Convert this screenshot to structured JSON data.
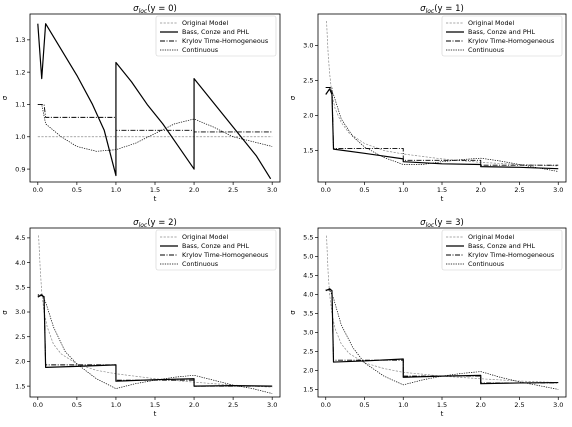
{
  "chart_data": [
    {
      "type": "line",
      "title_base": "σ",
      "title_sub": "loc",
      "title_arg": "(y = 0)",
      "xlabel": "t",
      "ylabel": "σ",
      "xlim": [
        -0.1,
        3.1
      ],
      "ylim": [
        0.86,
        1.38
      ],
      "xticks": [
        "0.0",
        "0.5",
        "1.0",
        "1.5",
        "2.0",
        "2.5",
        "3.0"
      ],
      "xtick_values": [
        0,
        0.5,
        1,
        1.5,
        2,
        2.5,
        3
      ],
      "yticks": [
        "0.9",
        "1.0",
        "1.1",
        "1.2",
        "1.3"
      ],
      "ytick_values": [
        0.9,
        1.0,
        1.1,
        1.2,
        1.3
      ],
      "legend": "top-right",
      "series": [
        {
          "name": "Original Model",
          "style": "orig",
          "x": [
            0,
            3
          ],
          "y": [
            1.0,
            1.0
          ]
        },
        {
          "name": "Bass, Conze and PHL",
          "style": "bass",
          "x": [
            0,
            0.05,
            0.1,
            0.3,
            0.5,
            0.7,
            0.85,
            1.0,
            1.0,
            1.2,
            1.4,
            1.6,
            1.8,
            2.0,
            2.0,
            2.2,
            2.4,
            2.6,
            2.8,
            2.98
          ],
          "y": [
            1.35,
            1.18,
            1.35,
            1.27,
            1.19,
            1.1,
            1.02,
            0.88,
            1.23,
            1.17,
            1.1,
            1.04,
            0.97,
            0.9,
            1.18,
            1.12,
            1.06,
            1.0,
            0.94,
            0.87
          ]
        },
        {
          "name": "Krylov Time-Homogeneous",
          "style": "krylov",
          "x": [
            0,
            0.08,
            0.1,
            1.0,
            1.0,
            2.0,
            2.0,
            3.0
          ],
          "y": [
            1.1,
            1.1,
            1.06,
            1.06,
            1.02,
            1.02,
            1.015,
            1.015
          ]
        },
        {
          "name": "Continuous",
          "style": "cont",
          "x": [
            0,
            0.05,
            0.1,
            0.3,
            0.5,
            0.75,
            1.0,
            1.25,
            1.5,
            1.75,
            2.0,
            2.25,
            2.5,
            2.75,
            3.0
          ],
          "y": [
            1.1,
            1.1,
            1.04,
            1.0,
            0.97,
            0.955,
            0.96,
            0.98,
            1.01,
            1.04,
            1.055,
            1.03,
            1.0,
            0.985,
            0.97
          ]
        }
      ]
    },
    {
      "type": "line",
      "title_base": "σ",
      "title_sub": "loc",
      "title_arg": "(y = 1)",
      "xlabel": "t",
      "ylabel": "σ",
      "xlim": [
        -0.1,
        3.1
      ],
      "ylim": [
        1.05,
        3.45
      ],
      "xticks": [
        "0.0",
        "0.5",
        "1.0",
        "1.5",
        "2.0",
        "2.5",
        "3.0"
      ],
      "xtick_values": [
        0,
        0.5,
        1,
        1.5,
        2,
        2.5,
        3
      ],
      "yticks": [
        "1.5",
        "2.0",
        "2.5",
        "3.0"
      ],
      "ytick_values": [
        1.5,
        2.0,
        2.5,
        3.0
      ],
      "legend": "top-right",
      "series": [
        {
          "name": "Original Model",
          "style": "orig",
          "x": [
            0.01,
            0.03,
            0.05,
            0.08,
            0.12,
            0.2,
            0.3,
            0.5,
            0.75,
            1.0,
            1.5,
            2.0,
            2.5,
            3.0
          ],
          "y": [
            3.35,
            2.9,
            2.6,
            2.3,
            2.1,
            1.9,
            1.75,
            1.6,
            1.5,
            1.45,
            1.38,
            1.33,
            1.3,
            1.28
          ]
        },
        {
          "name": "Bass, Conze and PHL",
          "style": "bass",
          "x": [
            0,
            0.05,
            0.08,
            0.1,
            0.5,
            1.0,
            1.0,
            1.5,
            2.0,
            2.0,
            2.5,
            3.0
          ],
          "y": [
            2.3,
            2.38,
            2.3,
            1.52,
            1.46,
            1.38,
            1.34,
            1.31,
            1.3,
            1.27,
            1.26,
            1.24
          ]
        },
        {
          "name": "Krylov Time-Homogeneous",
          "style": "krylov",
          "x": [
            0,
            0.08,
            0.1,
            1.0,
            1.0,
            2.0,
            2.0,
            3.0
          ],
          "y": [
            2.4,
            2.4,
            1.53,
            1.53,
            1.36,
            1.36,
            1.29,
            1.29
          ]
        },
        {
          "name": "Continuous",
          "style": "cont",
          "x": [
            0,
            0.05,
            0.1,
            0.2,
            0.35,
            0.5,
            0.75,
            1.0,
            1.25,
            1.5,
            1.75,
            2.0,
            2.25,
            2.5,
            2.75,
            3.0
          ],
          "y": [
            2.4,
            2.4,
            2.3,
            1.95,
            1.7,
            1.55,
            1.4,
            1.3,
            1.3,
            1.34,
            1.37,
            1.39,
            1.35,
            1.3,
            1.25,
            1.2
          ]
        }
      ]
    },
    {
      "type": "line",
      "title_base": "σ",
      "title_sub": "loc",
      "title_arg": "(y = 2)",
      "xlabel": "t",
      "ylabel": "σ",
      "xlim": [
        -0.1,
        3.1
      ],
      "ylim": [
        1.28,
        4.7
      ],
      "xticks": [
        "0.0",
        "0.5",
        "1.0",
        "1.5",
        "2.0",
        "2.5",
        "3.0"
      ],
      "xtick_values": [
        0,
        0.5,
        1,
        1.5,
        2,
        2.5,
        3
      ],
      "yticks": [
        "1.5",
        "2.0",
        "2.5",
        "3.0",
        "3.5",
        "4.0",
        "4.5"
      ],
      "ytick_values": [
        1.5,
        2.0,
        2.5,
        3.0,
        3.5,
        4.0,
        4.5
      ],
      "legend": "top-right",
      "series": [
        {
          "name": "Original Model",
          "style": "orig",
          "x": [
            0.01,
            0.03,
            0.05,
            0.08,
            0.12,
            0.2,
            0.3,
            0.5,
            0.75,
            1.0,
            1.5,
            2.0,
            2.5,
            3.0
          ],
          "y": [
            4.55,
            3.9,
            3.4,
            3.0,
            2.7,
            2.35,
            2.15,
            1.95,
            1.82,
            1.75,
            1.65,
            1.58,
            1.52,
            1.48
          ]
        },
        {
          "name": "Bass, Conze and PHL",
          "style": "bass",
          "x": [
            0,
            0.05,
            0.08,
            0.1,
            0.5,
            1.0,
            1.0,
            1.5,
            2.0,
            2.0,
            2.5,
            3.0
          ],
          "y": [
            3.3,
            3.35,
            3.3,
            1.88,
            1.9,
            1.93,
            1.6,
            1.63,
            1.65,
            1.5,
            1.51,
            1.5
          ]
        },
        {
          "name": "Krylov Time-Homogeneous",
          "style": "krylov",
          "x": [
            0,
            0.08,
            0.1,
            1.0,
            1.0,
            2.0,
            2.0,
            3.0
          ],
          "y": [
            3.33,
            3.33,
            1.93,
            1.93,
            1.62,
            1.62,
            1.5,
            1.5
          ]
        },
        {
          "name": "Continuous",
          "style": "cont",
          "x": [
            0,
            0.05,
            0.1,
            0.2,
            0.35,
            0.5,
            0.75,
            1.0,
            1.25,
            1.5,
            1.75,
            2.0,
            2.25,
            2.5,
            2.75,
            3.0
          ],
          "y": [
            3.35,
            3.35,
            3.2,
            2.7,
            2.2,
            1.95,
            1.65,
            1.45,
            1.55,
            1.62,
            1.68,
            1.72,
            1.62,
            1.52,
            1.45,
            1.35
          ]
        }
      ]
    },
    {
      "type": "line",
      "title_base": "σ",
      "title_sub": "loc",
      "title_arg": "(y = 3)",
      "xlabel": "t",
      "ylabel": "σ",
      "xlim": [
        -0.1,
        3.1
      ],
      "ylim": [
        1.3,
        5.75
      ],
      "xticks": [
        "0.0",
        "0.5",
        "1.0",
        "1.5",
        "2.0",
        "2.5",
        "3.0"
      ],
      "xtick_values": [
        0,
        0.5,
        1,
        1.5,
        2,
        2.5,
        3
      ],
      "yticks": [
        "1.5",
        "2.0",
        "2.5",
        "3.0",
        "3.5",
        "4.0",
        "4.5",
        "5.0",
        "5.5"
      ],
      "ytick_values": [
        1.5,
        2.0,
        2.5,
        3.0,
        3.5,
        4.0,
        4.5,
        5.0,
        5.5
      ],
      "legend": "top-right",
      "series": [
        {
          "name": "Original Model",
          "style": "orig",
          "x": [
            0.01,
            0.03,
            0.05,
            0.08,
            0.12,
            0.2,
            0.3,
            0.5,
            0.75,
            1.0,
            1.5,
            2.0,
            2.5,
            3.0
          ],
          "y": [
            5.55,
            4.6,
            4.0,
            3.5,
            3.1,
            2.7,
            2.45,
            2.2,
            2.05,
            1.95,
            1.85,
            1.78,
            1.72,
            1.68
          ]
        },
        {
          "name": "Bass, Conze and PHL",
          "style": "bass",
          "x": [
            0,
            0.05,
            0.08,
            0.1,
            0.5,
            1.0,
            1.0,
            1.5,
            2.0,
            2.0,
            2.5,
            3.0
          ],
          "y": [
            4.1,
            4.15,
            4.1,
            2.22,
            2.25,
            2.3,
            1.82,
            1.85,
            1.87,
            1.65,
            1.67,
            1.68
          ]
        },
        {
          "name": "Krylov Time-Homogeneous",
          "style": "krylov",
          "x": [
            0,
            0.08,
            0.1,
            1.0,
            1.0,
            2.0,
            2.0,
            3.0
          ],
          "y": [
            4.12,
            4.12,
            2.27,
            2.27,
            1.85,
            1.85,
            1.67,
            1.67
          ]
        },
        {
          "name": "Continuous",
          "style": "cont",
          "x": [
            0,
            0.05,
            0.1,
            0.2,
            0.35,
            0.5,
            0.75,
            1.0,
            1.25,
            1.5,
            1.75,
            2.0,
            2.25,
            2.5,
            2.75,
            3.0
          ],
          "y": [
            4.12,
            4.12,
            3.9,
            3.2,
            2.6,
            2.2,
            1.85,
            1.62,
            1.75,
            1.85,
            1.92,
            1.97,
            1.82,
            1.7,
            1.6,
            1.5
          ]
        }
      ]
    }
  ]
}
